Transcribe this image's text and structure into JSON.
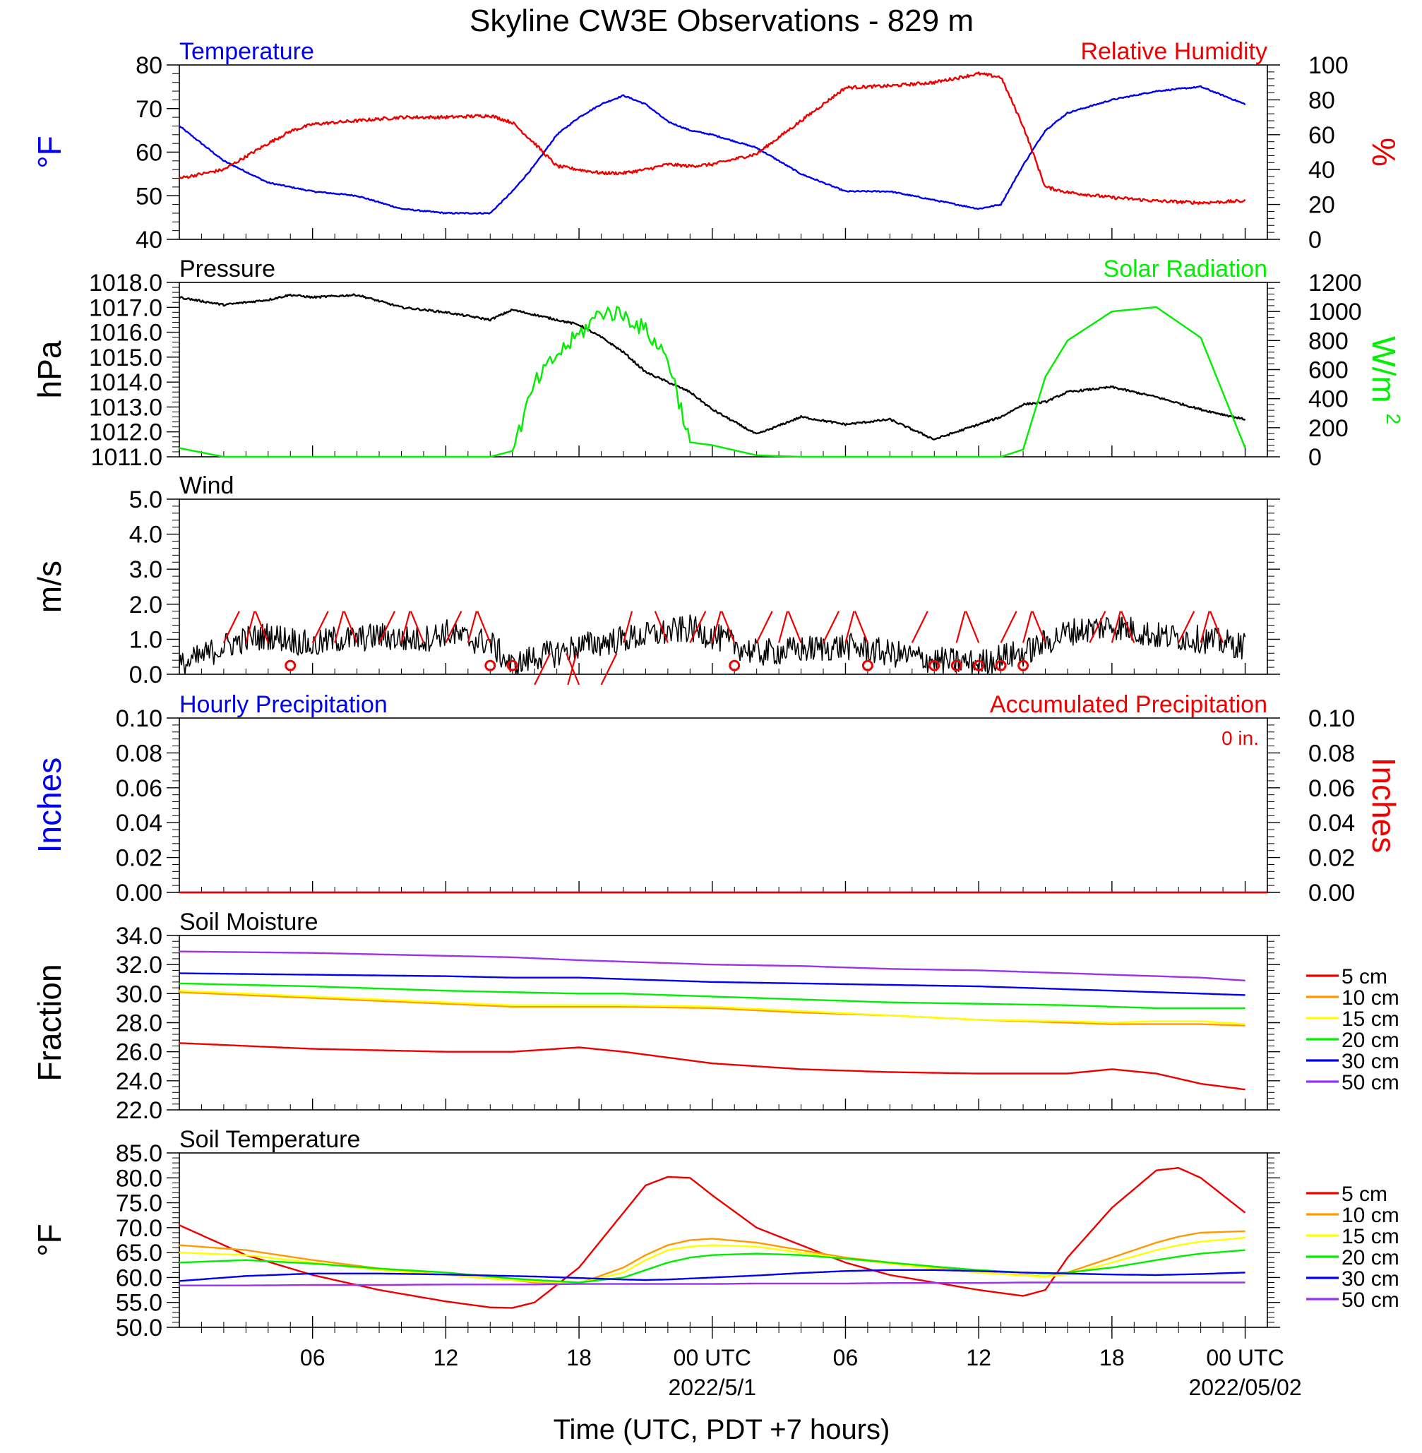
{
  "title": "Skyline CW3E Observations - 829 m",
  "xlabel": "Time (UTC, PDT +7 hours)",
  "x_tick_labels": [
    "06",
    "12",
    "18",
    "00 UTC",
    "06",
    "12",
    "18",
    "00 UTC"
  ],
  "x_date_labels": [
    "2022/5/1",
    "2022/05/02"
  ],
  "colors": {
    "blue": "#0000ee",
    "red": "#ee0000",
    "green": "#00ee00",
    "black": "#000000",
    "orange": "#ff9900",
    "yellow": "#ffff00",
    "purple": "#9933ee"
  },
  "depth_legend": [
    "5 cm",
    "10 cm",
    "15 cm",
    "20 cm",
    "30 cm",
    "50 cm"
  ],
  "chart_data": [
    {
      "type": "line",
      "panel": "temperature_humidity",
      "left_title": "Temperature",
      "right_title": "Relative Humidity",
      "ylabel_left": "°F",
      "ylabel_right": "%",
      "ylim_left": [
        40,
        80
      ],
      "ylim_right": [
        0,
        100
      ],
      "yticks_left": [
        "40",
        "50",
        "60",
        "70",
        "80"
      ],
      "yticks_right": [
        "0",
        "20",
        "40",
        "60",
        "80",
        "100"
      ],
      "x_hours": [
        0,
        2,
        4,
        5,
        6,
        8,
        10,
        12,
        14,
        15,
        16,
        17,
        18,
        19,
        20,
        21,
        22,
        23,
        24,
        26,
        28,
        30,
        32,
        34,
        36,
        37,
        38,
        39,
        40,
        42,
        44,
        46,
        48
      ],
      "series": [
        {
          "name": "Temperature",
          "axis": "left",
          "color": "blue",
          "values": [
            66,
            58,
            53,
            52,
            51,
            50,
            47,
            46,
            46,
            51,
            57,
            64,
            68,
            71,
            73,
            71,
            67,
            65,
            64,
            61,
            55,
            51,
            51,
            49,
            47,
            48,
            57,
            65,
            69,
            72,
            74,
            75,
            71
          ]
        },
        {
          "name": "Relative Humidity",
          "axis": "right",
          "color": "red",
          "values": [
            35,
            40,
            55,
            62,
            66,
            68,
            70,
            70,
            71,
            67,
            55,
            42,
            40,
            38,
            38,
            40,
            43,
            42,
            43,
            49,
            68,
            87,
            88,
            90,
            95,
            93,
            65,
            30,
            27,
            24,
            22,
            21,
            22
          ]
        }
      ]
    },
    {
      "type": "line",
      "panel": "pressure_solar",
      "left_title": "Pressure",
      "right_title": "Solar Radiation",
      "ylabel_left": "hPa",
      "ylabel_right": "W/m",
      "ylabel_right_sup": "2",
      "ylim_left": [
        1011,
        1018
      ],
      "ylim_right": [
        0,
        1200
      ],
      "yticks_left": [
        "1011.0",
        "1012.0",
        "1013.0",
        "1014.0",
        "1015.0",
        "1016.0",
        "1017.0",
        "1018.0"
      ],
      "yticks_right": [
        "0",
        "200",
        "400",
        "600",
        "800",
        "1000",
        "1200"
      ],
      "x_hours": [
        0,
        2,
        4,
        5,
        6,
        8,
        10,
        12,
        14,
        15,
        16,
        17,
        18,
        19,
        20,
        21,
        22,
        23,
        24,
        26,
        28,
        30,
        32,
        34,
        36,
        37,
        38,
        39,
        40,
        42,
        44,
        46,
        48
      ],
      "series": [
        {
          "name": "Pressure",
          "axis": "left",
          "color": "black",
          "values": [
            1017.4,
            1017.1,
            1017.3,
            1017.5,
            1017.4,
            1017.5,
            1017.0,
            1016.8,
            1016.5,
            1016.9,
            1016.7,
            1016.5,
            1016.3,
            1015.8,
            1015.2,
            1014.4,
            1014.0,
            1013.6,
            1012.9,
            1011.9,
            1012.6,
            1012.3,
            1012.5,
            1011.7,
            1012.3,
            1012.6,
            1013.1,
            1013.2,
            1013.6,
            1013.8,
            1013.4,
            1012.9,
            1012.5
          ]
        },
        {
          "name": "Solar Radiation",
          "axis": "right",
          "color": "green",
          "values": [
            60,
            0,
            0,
            0,
            0,
            0,
            0,
            0,
            0,
            40,
            500,
            700,
            840,
            1000,
            980,
            870,
            680,
            100,
            80,
            10,
            0,
            0,
            0,
            0,
            0,
            0,
            50,
            550,
            800,
            1000,
            1030,
            820,
            60
          ]
        }
      ]
    },
    {
      "type": "line",
      "panel": "wind",
      "left_title": "Wind",
      "ylabel_left": "m/s",
      "ylim_left": [
        0,
        5
      ],
      "yticks_left": [
        "0.0",
        "1.0",
        "2.0",
        "3.0",
        "4.0",
        "5.0"
      ],
      "x_hours": [
        0,
        1,
        2,
        3,
        4,
        5,
        6,
        7,
        8,
        9,
        10,
        11,
        12,
        13,
        14,
        15,
        16,
        17,
        18,
        19,
        20,
        21,
        22,
        23,
        24,
        26,
        28,
        30,
        32,
        34,
        36,
        37,
        38,
        39,
        40,
        42,
        44,
        46,
        48
      ],
      "series": [
        {
          "name": "Wind",
          "axis": "left",
          "color": "black",
          "values": [
            0.2,
            0.5,
            0.8,
            1.0,
            1.1,
            1.0,
            0.8,
            1.0,
            1.0,
            1.1,
            1.0,
            1.0,
            1.2,
            1.0,
            0.9,
            0.2,
            0.5,
            0.6,
            0.8,
            0.9,
            1.0,
            1.1,
            1.2,
            1.3,
            1.1,
            0.6,
            0.7,
            0.8,
            0.6,
            0.4,
            0.3,
            0.5,
            0.6,
            0.9,
            1.2,
            1.4,
            1.1,
            1.0,
            0.8
          ]
        }
      ],
      "barb_hours": [
        2,
        3,
        4,
        6,
        7,
        8,
        9,
        10,
        11,
        12,
        13,
        14,
        16,
        17.5,
        18,
        19,
        20,
        22,
        23,
        24,
        25,
        26,
        27,
        28,
        29,
        30,
        31,
        33,
        35,
        36,
        37,
        38,
        39,
        41,
        42,
        43,
        45,
        46,
        47
      ],
      "calm_hours": [
        5,
        14,
        15,
        25,
        31,
        34,
        35,
        36,
        37,
        38
      ]
    },
    {
      "type": "line",
      "panel": "precipitation",
      "left_title": "Hourly Precipitation",
      "right_title": "Accumulated Precipitation",
      "annotation": "0 in.",
      "ylabel_left": "Inches",
      "ylabel_right": "Inches",
      "ylim_left": [
        0,
        0.1
      ],
      "ylim_right": [
        0,
        0.1
      ],
      "yticks_left": [
        "0.00",
        "0.02",
        "0.04",
        "0.06",
        "0.08",
        "0.10"
      ],
      "yticks_right": [
        "0.00",
        "0.02",
        "0.04",
        "0.06",
        "0.08",
        "0.10"
      ],
      "x_hours": [
        0,
        48
      ],
      "series": [
        {
          "name": "Hourly Precipitation",
          "axis": "left",
          "color": "blue",
          "values": [
            0,
            0
          ]
        },
        {
          "name": "Accumulated Precipitation",
          "axis": "right",
          "color": "red",
          "values": [
            0,
            0
          ]
        }
      ]
    },
    {
      "type": "line",
      "panel": "soil_moisture",
      "left_title": "Soil Moisture",
      "ylabel_left": "Fraction",
      "ylim_left": [
        22,
        34
      ],
      "yticks_left": [
        "22.0",
        "24.0",
        "26.0",
        "28.0",
        "30.0",
        "32.0",
        "34.0"
      ],
      "x_hours": [
        0,
        6,
        12,
        15,
        18,
        20,
        24,
        28,
        32,
        36,
        40,
        42,
        44,
        46,
        48
      ],
      "series": [
        {
          "name": "5 cm",
          "axis": "left",
          "color": "red",
          "values": [
            26.6,
            26.2,
            26.0,
            26.0,
            26.3,
            26.0,
            25.2,
            24.8,
            24.6,
            24.5,
            24.5,
            24.8,
            24.5,
            23.8,
            23.4
          ]
        },
        {
          "name": "10 cm",
          "axis": "left",
          "color": "orange",
          "values": [
            30.1,
            29.7,
            29.3,
            29.1,
            29.1,
            29.1,
            29.0,
            28.7,
            28.5,
            28.2,
            28.0,
            27.9,
            27.9,
            27.9,
            27.8
          ]
        },
        {
          "name": "15 cm",
          "axis": "left",
          "color": "yellow",
          "values": [
            30.2,
            29.8,
            29.4,
            29.2,
            29.2,
            29.2,
            29.1,
            28.8,
            28.5,
            28.2,
            28.1,
            28.0,
            28.1,
            28.1,
            27.9
          ]
        },
        {
          "name": "20 cm",
          "axis": "left",
          "color": "green",
          "values": [
            30.7,
            30.5,
            30.2,
            30.1,
            30.0,
            30.0,
            29.8,
            29.6,
            29.4,
            29.3,
            29.2,
            29.1,
            29.0,
            29.0,
            29.0
          ]
        },
        {
          "name": "30 cm",
          "axis": "left",
          "color": "blue",
          "values": [
            31.4,
            31.3,
            31.2,
            31.1,
            31.1,
            31.0,
            30.8,
            30.7,
            30.6,
            30.5,
            30.3,
            30.2,
            30.1,
            30.0,
            29.9
          ]
        },
        {
          "name": "50 cm",
          "axis": "left",
          "color": "purple",
          "values": [
            32.9,
            32.8,
            32.6,
            32.5,
            32.3,
            32.2,
            32.0,
            31.9,
            31.7,
            31.6,
            31.4,
            31.3,
            31.2,
            31.1,
            30.9
          ]
        }
      ]
    },
    {
      "type": "line",
      "panel": "soil_temperature",
      "left_title": "Soil Temperature",
      "ylabel_left": "°F",
      "ylim_left": [
        50,
        85
      ],
      "yticks_left": [
        "50.0",
        "55.0",
        "60.0",
        "65.0",
        "70.0",
        "75.0",
        "80.0",
        "85.0"
      ],
      "x_hours": [
        0,
        3,
        6,
        9,
        12,
        14,
        15,
        16,
        18,
        20,
        21,
        22,
        23,
        24,
        26,
        28,
        30,
        32,
        34,
        36,
        38,
        39,
        40,
        42,
        44,
        45,
        46,
        48
      ],
      "series": [
        {
          "name": "5 cm",
          "axis": "left",
          "color": "red",
          "values": [
            70.5,
            64.5,
            60.5,
            57.5,
            55.2,
            54.0,
            53.9,
            55.0,
            62.0,
            73.0,
            78.5,
            80.2,
            80.0,
            76.5,
            70.0,
            66.5,
            63.0,
            60.5,
            59.0,
            57.5,
            56.3,
            57.5,
            64.0,
            74.0,
            81.5,
            82.0,
            80.0,
            73.0
          ]
        },
        {
          "name": "10 cm",
          "axis": "left",
          "color": "orange",
          "values": [
            66.5,
            65.5,
            63.5,
            61.8,
            60.5,
            59.8,
            59.5,
            59.0,
            58.8,
            62.0,
            64.5,
            66.5,
            67.5,
            67.8,
            67.0,
            65.5,
            64.0,
            63.0,
            62.0,
            61.0,
            60.5,
            60.2,
            61.0,
            64.0,
            67.0,
            68.2,
            69.0,
            69.3
          ]
        },
        {
          "name": "15 cm",
          "axis": "left",
          "color": "yellow",
          "values": [
            65.0,
            64.5,
            63.0,
            61.5,
            60.5,
            59.8,
            59.5,
            59.2,
            58.9,
            61.0,
            63.5,
            65.5,
            66.2,
            66.5,
            66.2,
            65.0,
            63.8,
            62.8,
            61.8,
            61.0,
            60.4,
            60.2,
            60.6,
            63.0,
            65.5,
            66.5,
            67.2,
            68.0
          ]
        },
        {
          "name": "20 cm",
          "axis": "left",
          "color": "green",
          "values": [
            63.0,
            63.5,
            62.8,
            61.8,
            61.0,
            60.2,
            59.8,
            59.5,
            59.0,
            60.0,
            61.5,
            63.0,
            64.0,
            64.5,
            64.8,
            64.5,
            63.8,
            63.0,
            62.2,
            61.5,
            61.0,
            60.8,
            61.0,
            62.0,
            63.5,
            64.2,
            64.8,
            65.5
          ]
        },
        {
          "name": "30 cm",
          "axis": "left",
          "color": "blue",
          "values": [
            59.3,
            60.3,
            60.8,
            60.8,
            60.6,
            60.4,
            60.3,
            60.2,
            59.9,
            59.6,
            59.5,
            59.6,
            59.8,
            60.0,
            60.4,
            60.9,
            61.3,
            61.5,
            61.5,
            61.3,
            61.0,
            60.9,
            60.8,
            60.6,
            60.5,
            60.6,
            60.7,
            61.0
          ]
        },
        {
          "name": "50 cm",
          "axis": "left",
          "color": "purple",
          "values": [
            58.4,
            58.4,
            58.5,
            58.5,
            58.6,
            58.6,
            58.6,
            58.6,
            58.7,
            58.7,
            58.7,
            58.7,
            58.7,
            58.7,
            58.8,
            58.8,
            58.8,
            58.9,
            58.9,
            58.9,
            59.0,
            59.0,
            59.0,
            59.0,
            59.0,
            59.0,
            59.0,
            59.0
          ]
        }
      ]
    }
  ]
}
